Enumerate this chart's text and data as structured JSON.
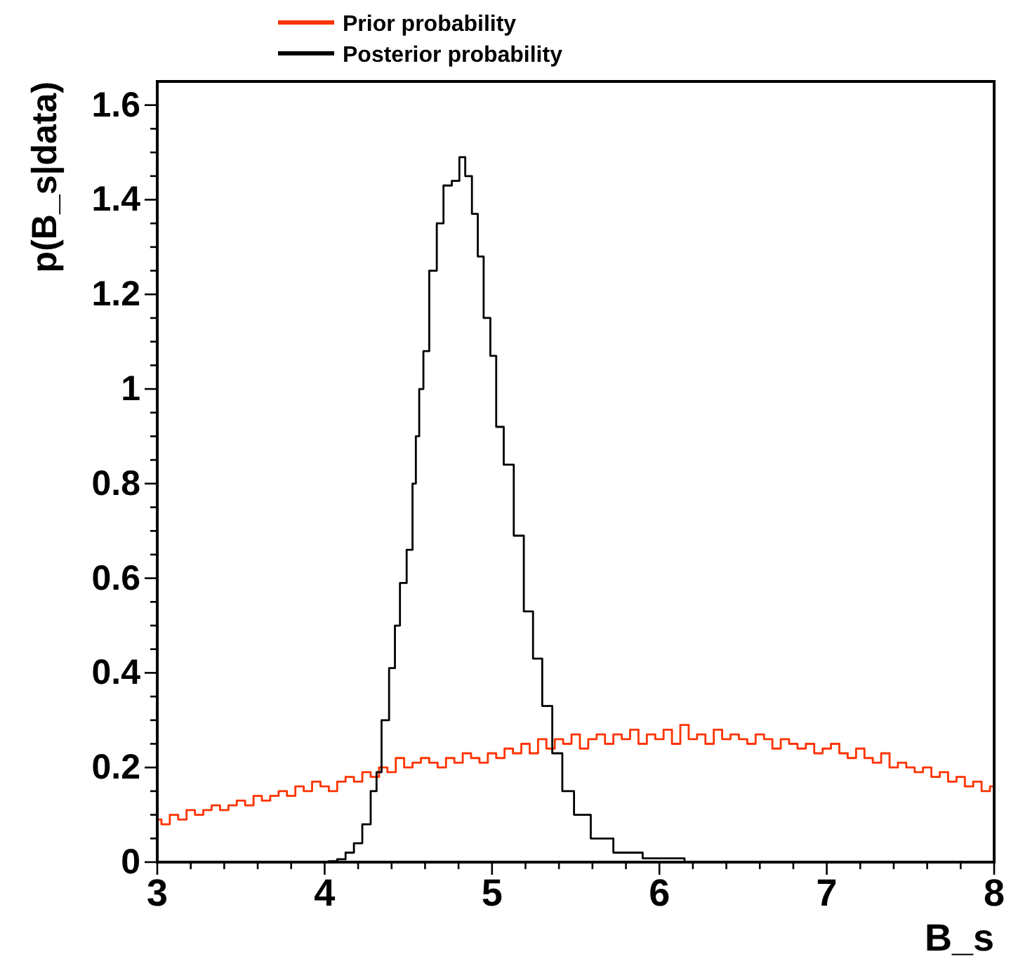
{
  "chart_data": {
    "type": "step",
    "xlabel": "B_s",
    "ylabel": "p(B_s|data)",
    "legend": "top left",
    "xlim": [
      3,
      8
    ],
    "ylim": [
      0,
      1.65
    ],
    "xticks": [
      3,
      {
        "value": 3.2,
        "label": null
      },
      {
        "value": 3.4,
        "label": null
      },
      {
        "value": 3.6,
        "label": null
      },
      {
        "value": 3.8,
        "label": null
      },
      4,
      {
        "value": 4.2,
        "label": null
      },
      {
        "value": 4.4,
        "label": null
      },
      {
        "value": 4.6,
        "label": null
      },
      {
        "value": 4.8,
        "label": null
      },
      5,
      {
        "value": 5.2,
        "label": null
      },
      {
        "value": 5.4,
        "label": null
      },
      {
        "value": 5.6,
        "label": null
      },
      {
        "value": 5.8,
        "label": null
      },
      6,
      {
        "value": 6.2,
        "label": null
      },
      {
        "value": 6.4,
        "label": null
      },
      {
        "value": 6.6,
        "label": null
      },
      {
        "value": 6.8,
        "label": null
      },
      7,
      {
        "value": 7.2,
        "label": null
      },
      {
        "value": 7.4,
        "label": null
      },
      {
        "value": 7.6,
        "label": null
      },
      {
        "value": 7.8,
        "label": null
      },
      8
    ],
    "yticks": [
      0,
      {
        "value": 0.05,
        "label": null
      },
      {
        "value": 0.1,
        "label": null
      },
      {
        "value": 0.15,
        "label": null
      },
      0.2,
      {
        "value": 0.25,
        "label": null
      },
      {
        "value": 0.3,
        "label": null
      },
      {
        "value": 0.35,
        "label": null
      },
      0.4,
      {
        "value": 0.45,
        "label": null
      },
      {
        "value": 0.5,
        "label": null
      },
      {
        "value": 0.55,
        "label": null
      },
      0.6,
      {
        "value": 0.65,
        "label": null
      },
      {
        "value": 0.7,
        "label": null
      },
      {
        "value": 0.75,
        "label": null
      },
      0.8,
      {
        "value": 0.85,
        "label": null
      },
      {
        "value": 0.9,
        "label": null
      },
      {
        "value": 0.95,
        "label": null
      },
      1,
      {
        "value": 1.05,
        "label": null
      },
      {
        "value": 1.1,
        "label": null
      },
      {
        "value": 1.15,
        "label": null
      },
      1.2,
      {
        "value": 1.25,
        "label": null
      },
      {
        "value": 1.3,
        "label": null
      },
      {
        "value": 1.35,
        "label": null
      },
      1.4,
      {
        "value": 1.45,
        "label": null
      },
      {
        "value": 1.5,
        "label": null
      },
      {
        "value": 1.55,
        "label": null
      },
      1.6
    ],
    "series": [
      {
        "name": "Prior probability",
        "color": "#ff3300",
        "x": [
          3.0,
          3.05,
          3.1,
          3.15,
          3.2,
          3.25,
          3.3,
          3.35,
          3.4,
          3.45,
          3.5,
          3.55,
          3.6,
          3.65,
          3.7,
          3.75,
          3.8,
          3.85,
          3.9,
          3.95,
          4.0,
          4.05,
          4.1,
          4.15,
          4.2,
          4.25,
          4.3,
          4.35,
          4.4,
          4.45,
          4.5,
          4.55,
          4.6,
          4.65,
          4.7,
          4.75,
          4.8,
          4.85,
          4.9,
          4.95,
          5.0,
          5.05,
          5.1,
          5.15,
          5.2,
          5.25,
          5.3,
          5.35,
          5.4,
          5.45,
          5.5,
          5.55,
          5.6,
          5.65,
          5.7,
          5.75,
          5.8,
          5.85,
          5.9,
          5.95,
          6.0,
          6.05,
          6.1,
          6.15,
          6.2,
          6.25,
          6.3,
          6.35,
          6.4,
          6.45,
          6.5,
          6.55,
          6.6,
          6.65,
          6.7,
          6.75,
          6.8,
          6.85,
          6.9,
          6.95,
          7.0,
          7.05,
          7.1,
          7.15,
          7.2,
          7.25,
          7.3,
          7.35,
          7.4,
          7.45,
          7.5,
          7.55,
          7.6,
          7.65,
          7.7,
          7.75,
          7.8,
          7.85,
          7.9,
          7.95,
          8.0
        ],
        "values": [
          0.09,
          0.08,
          0.1,
          0.09,
          0.11,
          0.1,
          0.11,
          0.12,
          0.11,
          0.12,
          0.13,
          0.12,
          0.14,
          0.13,
          0.14,
          0.15,
          0.14,
          0.16,
          0.15,
          0.17,
          0.16,
          0.15,
          0.17,
          0.18,
          0.17,
          0.19,
          0.18,
          0.2,
          0.19,
          0.22,
          0.2,
          0.21,
          0.22,
          0.21,
          0.2,
          0.22,
          0.21,
          0.23,
          0.22,
          0.21,
          0.23,
          0.22,
          0.24,
          0.23,
          0.25,
          0.23,
          0.26,
          0.24,
          0.26,
          0.25,
          0.27,
          0.24,
          0.26,
          0.27,
          0.25,
          0.27,
          0.26,
          0.28,
          0.25,
          0.27,
          0.26,
          0.28,
          0.25,
          0.29,
          0.26,
          0.27,
          0.25,
          0.28,
          0.26,
          0.27,
          0.26,
          0.25,
          0.27,
          0.26,
          0.24,
          0.26,
          0.25,
          0.24,
          0.25,
          0.23,
          0.24,
          0.25,
          0.23,
          0.22,
          0.24,
          0.22,
          0.21,
          0.23,
          0.2,
          0.21,
          0.2,
          0.19,
          0.2,
          0.18,
          0.19,
          0.17,
          0.18,
          0.16,
          0.17,
          0.15,
          0.16
        ]
      },
      {
        "name": "Posterior probability",
        "color": "#000000",
        "x": [
          4.0,
          4.05,
          4.1,
          4.15,
          4.2,
          4.25,
          4.3,
          4.32,
          4.36,
          4.41,
          4.43,
          4.47,
          4.51,
          4.54,
          4.55,
          4.58,
          4.6,
          4.65,
          4.69,
          4.73,
          4.79,
          4.82,
          4.86,
          4.9,
          4.93,
          4.97,
          5.01,
          5.04,
          5.1,
          5.16,
          5.22,
          5.27,
          5.33,
          5.39,
          5.45,
          5.53,
          5.65,
          5.8,
          6.0,
          6.3,
          6.5
        ],
        "values": [
          0,
          0.002,
          0.006,
          0.02,
          0.04,
          0.08,
          0.15,
          0.19,
          0.3,
          0.41,
          0.5,
          0.59,
          0.66,
          0.8,
          0.9,
          1,
          1.08,
          1.25,
          1.35,
          1.43,
          1.44,
          1.49,
          1.45,
          1.37,
          1.28,
          1.15,
          1.07,
          0.92,
          0.84,
          0.69,
          0.53,
          0.43,
          0.33,
          0.23,
          0.15,
          0.1,
          0.05,
          0.02,
          0.008,
          0.001,
          0
        ]
      }
    ]
  }
}
